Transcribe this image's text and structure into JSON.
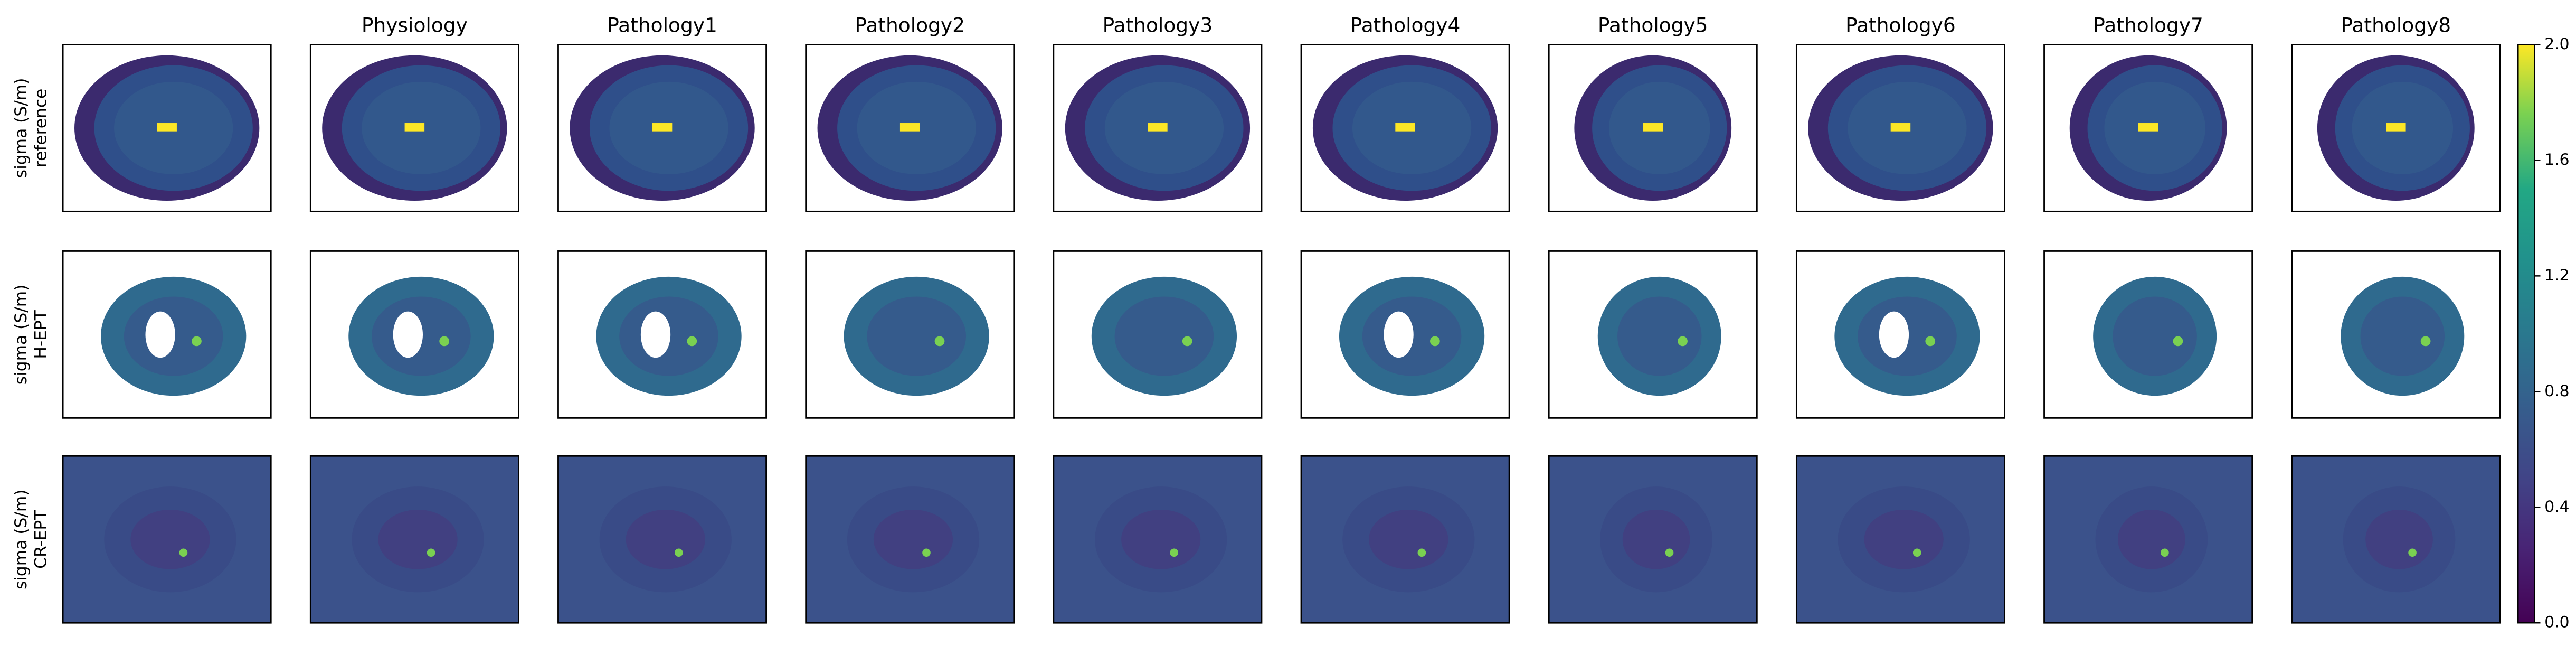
{
  "chart_data": {
    "type": "image-grid",
    "column_titles": [
      "Physiology",
      "Pathology1",
      "Pathology2",
      "Pathology3",
      "Pathology4",
      "Pathology5",
      "Pathology6",
      "Pathology7",
      "Pathology8"
    ],
    "row_labels": [
      [
        "sigma (S/m)",
        "reference"
      ],
      [
        "sigma (S/m)",
        "H-EPT"
      ],
      [
        "sigma (S/m)",
        "CR-EPT"
      ]
    ],
    "colorbar": {
      "lim": [
        0,
        2
      ],
      "ticks": [
        {
          "value": 0,
          "label": "0.0"
        },
        {
          "value": 0.4,
          "label": "0.4"
        },
        {
          "value": 0.8,
          "label": "0.8"
        },
        {
          "value": 1.2,
          "label": "1.2"
        },
        {
          "value": 1.6,
          "label": "1.6"
        },
        {
          "value": 2,
          "label": "2.0"
        }
      ]
    }
  }
}
